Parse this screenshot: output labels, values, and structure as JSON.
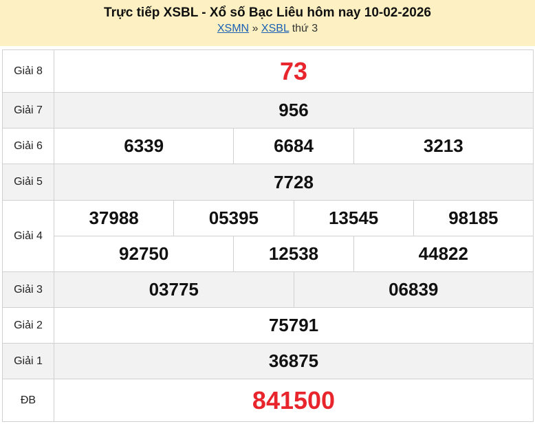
{
  "header": {
    "title": "Trực tiếp XSBL - Xổ số Bạc Liêu hôm nay 10-02-2026",
    "link1": "XSMN",
    "sep": "»",
    "link2": "XSBL",
    "day": "thứ 3"
  },
  "prizes": [
    {
      "label": "Giải 8",
      "numbers": [
        "73"
      ]
    },
    {
      "label": "Giải 7",
      "numbers": [
        "956"
      ]
    },
    {
      "label": "Giải 6",
      "numbers": [
        "6339",
        "6684",
        "3213"
      ]
    },
    {
      "label": "Giải 5",
      "numbers": [
        "7728"
      ]
    },
    {
      "label": "Giải 4",
      "numbers": [
        "37988",
        "05395",
        "13545",
        "98185",
        "92750",
        "12538",
        "44822"
      ]
    },
    {
      "label": "Giải 3",
      "numbers": [
        "03775",
        "06839"
      ]
    },
    {
      "label": "Giải 2",
      "numbers": [
        "75791"
      ]
    },
    {
      "label": "Giải 1",
      "numbers": [
        "36875"
      ]
    },
    {
      "label": "ĐB",
      "numbers": [
        "841500"
      ]
    }
  ],
  "colors": {
    "highlight": "#e8242c",
    "header_bg": "#fdf1c3"
  }
}
